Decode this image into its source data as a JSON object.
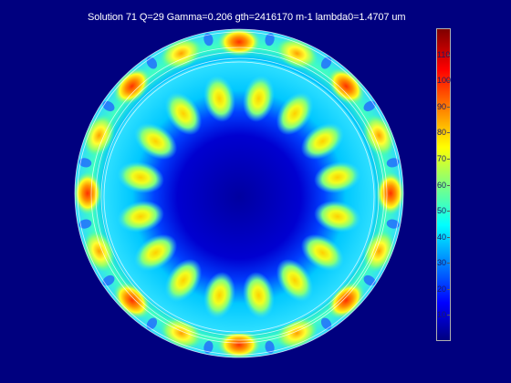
{
  "figure": {
    "title": "Solution 71 Q=29 Gamma=0.206 gth=2416170 m-1 lambda0=1.4707 um"
  },
  "mode_pattern": {
    "type": "whispering-gallery field intensity map",
    "inner_lobes": 16,
    "outer_lobes": 16,
    "background_color": "#00007f"
  },
  "colorbar": {
    "colormap": "jet",
    "colors": [
      "#00007f",
      "#0000ff",
      "#007fff",
      "#00ffff",
      "#7fff7f",
      "#ffff00",
      "#ff7f00",
      "#ff0000",
      "#7f0000"
    ],
    "tick_labels": [
      "10",
      "20",
      "30",
      "40",
      "50",
      "60",
      "70",
      "80",
      "90",
      "100",
      "110"
    ],
    "tick_values": [
      10,
      20,
      30,
      40,
      50,
      60,
      70,
      80,
      90,
      100,
      110
    ],
    "range": [
      0,
      120
    ]
  }
}
